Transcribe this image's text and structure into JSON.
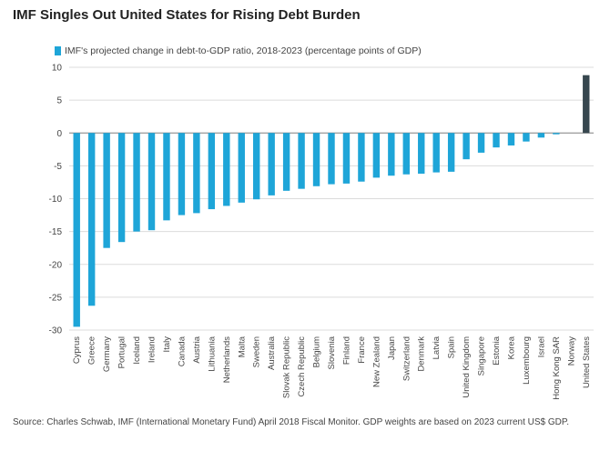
{
  "title": "IMF Singles Out United States for Rising Debt Burden",
  "source": "Source:  Charles Schwab, IMF (International Monetary Fund) April 2018 Fiscal Monitor. GDP weights are based on 2023 current US$ GDP.",
  "colors": {
    "bar": "#1ea5d8",
    "highlight": "#37474f",
    "grid": "#dcdcdc"
  },
  "chart_data": {
    "type": "bar",
    "title": "IMF Singles Out United States for Rising Debt Burden",
    "legend": [
      "IMF's projected change in debt-to-GDP ratio, 2018-2023 (percentage points of GDP)"
    ],
    "legend_position": "top-left",
    "grid": true,
    "ylim": [
      -30,
      10
    ],
    "yticks": [
      10,
      5,
      0,
      -5,
      -10,
      -15,
      -20,
      -25,
      -30
    ],
    "categories": [
      "Cyprus",
      "Greece",
      "Germany",
      "Portugal",
      "Iceland",
      "Ireland",
      "Italy",
      "Canada",
      "Austria",
      "Lithuania",
      "Netherlands",
      "Malta",
      "Sweden",
      "Australia",
      "Slovak Republic",
      "Czech Republic",
      "Belgium",
      "Slovenia",
      "Finland",
      "France",
      "New Zealand",
      "Japan",
      "Switzerland",
      "Denmark",
      "Latvia",
      "Spain",
      "United Kingdom",
      "Singapore",
      "Estonia",
      "Korea",
      "Luxembourg",
      "Israel",
      "Hong Kong SAR",
      "Norway",
      "United States"
    ],
    "series": [
      {
        "name": "IMF's projected change in debt-to-GDP ratio, 2018-2023 (percentage points of GDP)",
        "values": [
          -29.5,
          -26.3,
          -17.5,
          -16.6,
          -15.0,
          -14.8,
          -13.3,
          -12.5,
          -12.2,
          -11.6,
          -11.1,
          -10.6,
          -10.1,
          -9.5,
          -8.8,
          -8.5,
          -8.1,
          -7.8,
          -7.7,
          -7.4,
          -6.8,
          -6.5,
          -6.3,
          -6.2,
          -6.0,
          -5.9,
          -4.0,
          -3.0,
          -2.2,
          -1.9,
          -1.3,
          -0.7,
          -0.2,
          0.0,
          8.8
        ]
      }
    ],
    "highlight_category": "United States"
  }
}
